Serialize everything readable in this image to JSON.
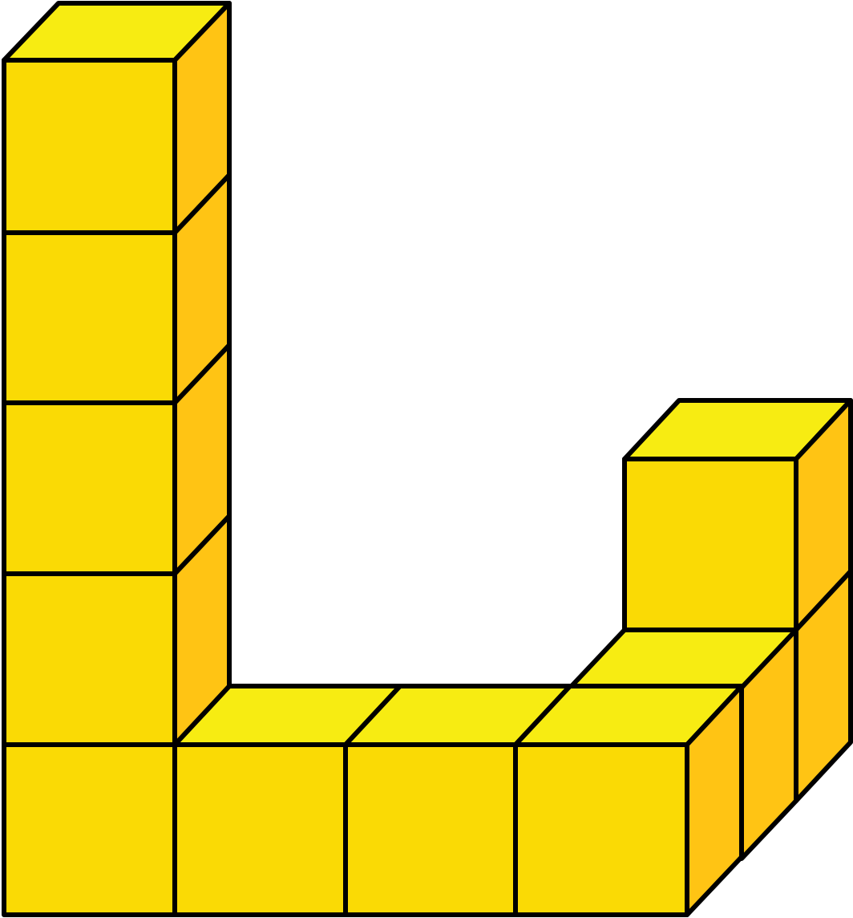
{
  "colors": {
    "front": "#FADA05",
    "top": "#F7EC12",
    "side": "#FFC414",
    "edge": "#000000",
    "background": "#FFFFFF"
  },
  "structure": {
    "block_count": 11,
    "description_kind": "unit-cube block structure (isometric view)",
    "front_row_cubes": 4,
    "left_column_height": 5,
    "back_right_column_height": 2
  }
}
